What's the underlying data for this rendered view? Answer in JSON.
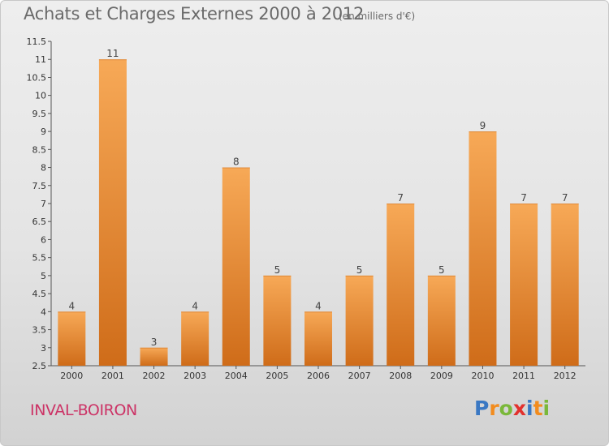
{
  "title": "Achats et Charges Externes 2000 à 2012",
  "subtitle": "(en milliers d'€)",
  "commune": "INVAL-BOIRON",
  "logo": {
    "text": "Proxiti",
    "letters": [
      "P",
      "r",
      "o",
      "x",
      "i",
      "t",
      "i"
    ],
    "colors": [
      "#3a78c3",
      "#f28c1e",
      "#7ab83a",
      "#e2312d",
      "#3a78c3",
      "#f28c1e",
      "#7ab83a"
    ]
  },
  "colors": {
    "bar_light": "#f7a957",
    "bar_dark": "#cf6c19",
    "title": "#6a6a6a",
    "commune": "#cc3366"
  },
  "chart_data": {
    "type": "bar",
    "categories": [
      "2000",
      "2001",
      "2002",
      "2003",
      "2004",
      "2005",
      "2006",
      "2007",
      "2008",
      "2009",
      "2010",
      "2011",
      "2012"
    ],
    "values": [
      4,
      11,
      3,
      4,
      8,
      5,
      4,
      5,
      7,
      5,
      9,
      7,
      7
    ],
    "value_labels": [
      "4",
      "11",
      "3",
      "4",
      "8",
      "5",
      "4",
      "5",
      "7",
      "5",
      "9",
      "7",
      "7"
    ],
    "ylim": [
      2.5,
      11.5
    ],
    "yticks": [
      2.5,
      3,
      3.5,
      4,
      4.5,
      5,
      5.5,
      6,
      6.5,
      7,
      7.5,
      8,
      8.5,
      9,
      9.5,
      10,
      10.5,
      11,
      11.5
    ],
    "ytick_labels": [
      "2.5",
      "3",
      "3.5",
      "4",
      "4.5",
      "5",
      "5.5",
      "6",
      "6.5",
      "7",
      "7.5",
      "8",
      "8.5",
      "9",
      "9.5",
      "10",
      "10.5",
      "11",
      "11.5"
    ],
    "grid": false,
    "xlabel": "",
    "ylabel": ""
  }
}
